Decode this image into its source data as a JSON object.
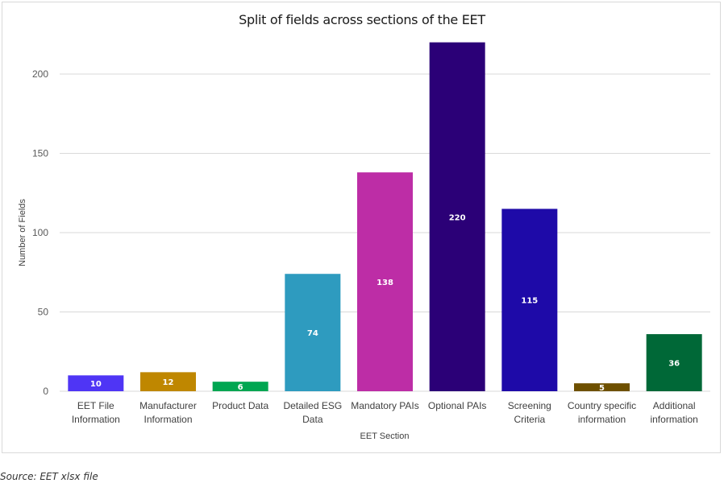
{
  "chart_data": {
    "type": "bar",
    "title": "Split of fields across sections of the EET",
    "xlabel": "EET Section",
    "ylabel": "Number of Fields",
    "ylim": [
      0,
      220
    ],
    "yticks": [
      0,
      50,
      100,
      150,
      200
    ],
    "grid": true,
    "legend": "none",
    "categories": [
      [
        "EET File",
        "Information"
      ],
      [
        "Manufacturer",
        "Information"
      ],
      [
        "Product Data"
      ],
      [
        "Detailed ESG",
        "Data"
      ],
      [
        "Mandatory PAIs"
      ],
      [
        "Optional PAIs"
      ],
      [
        "Screening",
        "Criteria"
      ],
      [
        "Country specific",
        "information"
      ],
      [
        "Additional",
        "information"
      ]
    ],
    "values": [
      10,
      12,
      6,
      74,
      138,
      220,
      115,
      5,
      36
    ],
    "colors": [
      "#4f35f5",
      "#bf8700",
      "#00a651",
      "#2e9bbf",
      "#bd2da6",
      "#2b0077",
      "#1e0aa8",
      "#6e5000",
      "#006837"
    ]
  },
  "footer": {
    "source": "Source: EET xlsx file"
  }
}
